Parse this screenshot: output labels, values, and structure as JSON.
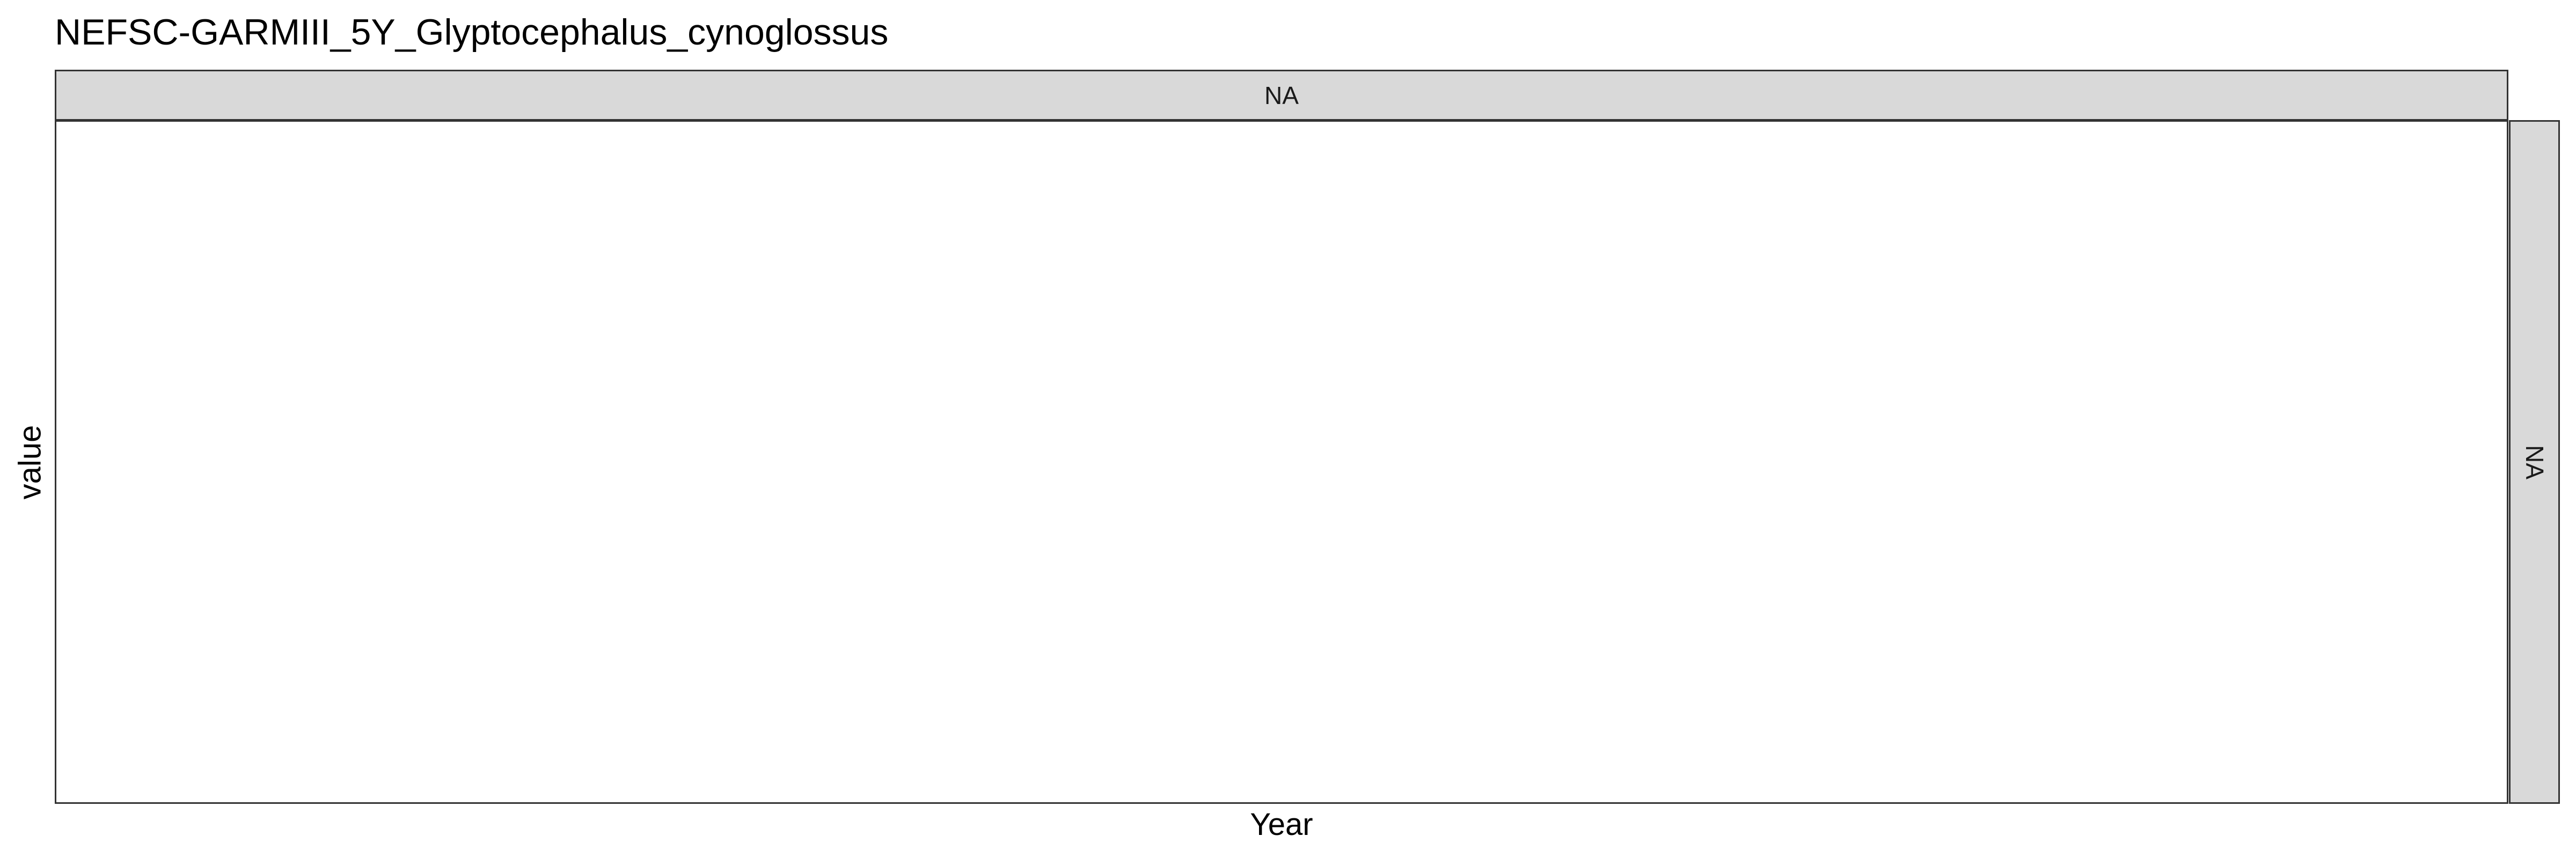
{
  "chart_data": {
    "type": "line",
    "title": "NEFSC-GARMIII_5Y_Glyptocephalus_cynoglossus",
    "xlabel": "Year",
    "ylabel": "value",
    "facet_col_label": "NA",
    "facet_row_label": "NA",
    "series": [],
    "grid": false,
    "legend": "none"
  }
}
